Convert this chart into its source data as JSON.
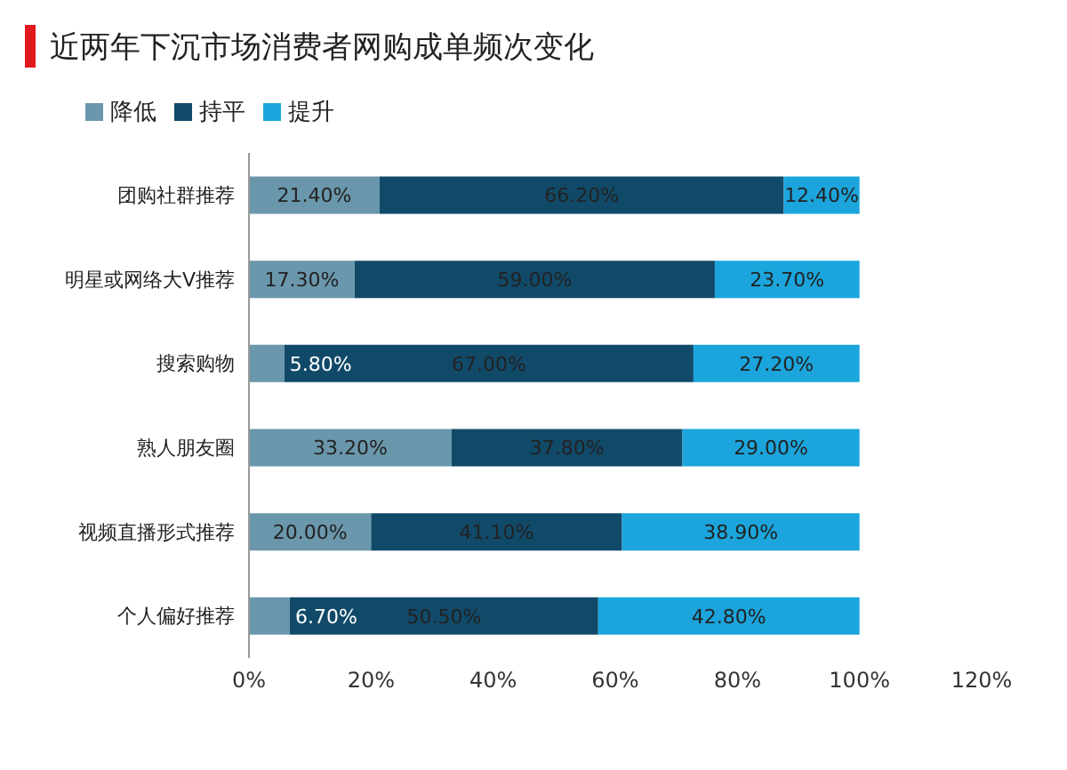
{
  "chart_data": {
    "type": "bar",
    "orientation": "horizontal",
    "stacked": true,
    "title": "近两年下沉市场消费者网购成单频次变化",
    "categories": [
      "团购社群推荐",
      "明星或网络大V推荐",
      "搜索购物",
      "熟人朋友圈",
      "视频直播形式推荐",
      "个人偏好推荐"
    ],
    "series": [
      {
        "name": "降低",
        "color": "#6a97ab",
        "values": [
          21.4,
          17.3,
          5.8,
          33.2,
          20.0,
          6.7
        ],
        "value_labels": [
          "21.40%",
          "17.30%",
          "5.80%",
          "33.20%",
          "20.00%",
          "6.70%"
        ]
      },
      {
        "name": "持平",
        "color": "#114a69",
        "values": [
          66.2,
          59.0,
          67.0,
          37.8,
          41.1,
          50.5
        ],
        "value_labels": [
          "66.20%",
          "59.00%",
          "67.00%",
          "37.80%",
          "41.10%",
          "50.50%"
        ]
      },
      {
        "name": "提升",
        "color": "#1ba5dc",
        "values": [
          12.4,
          23.7,
          27.2,
          29.0,
          38.9,
          42.8
        ],
        "value_labels": [
          "12.40%",
          "23.70%",
          "27.20%",
          "29.00%",
          "38.90%",
          "42.80%"
        ]
      }
    ],
    "xlim": [
      0,
      120
    ],
    "xticks": [
      {
        "value": 0,
        "label": "0%"
      },
      {
        "value": 20,
        "label": "20%"
      },
      {
        "value": 40,
        "label": "40%"
      },
      {
        "value": 60,
        "label": "60%"
      },
      {
        "value": 80,
        "label": "80%"
      },
      {
        "value": 100,
        "label": "100%"
      },
      {
        "value": 120,
        "label": "120%"
      }
    ],
    "legend": "top left",
    "grid": false
  }
}
